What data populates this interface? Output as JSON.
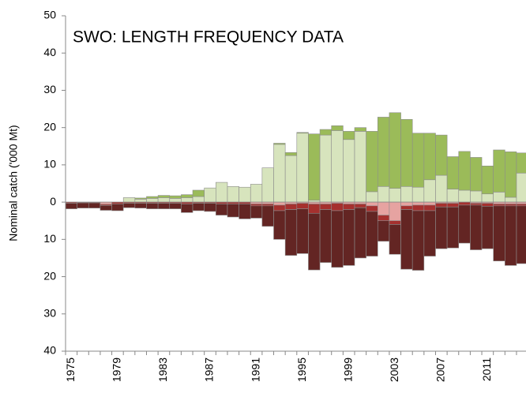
{
  "chart_data": {
    "type": "diverging-stacked-bar",
    "title": "SWO: LENGTH FREQUENCY DATA",
    "y_label": "Nominal catch ('000 Mt)",
    "categories": [
      "1975",
      null,
      null,
      null,
      "1979",
      null,
      null,
      null,
      "1983",
      null,
      null,
      null,
      "1987",
      null,
      null,
      null,
      "1991",
      null,
      null,
      null,
      "1995",
      null,
      null,
      null,
      "1999",
      null,
      null,
      null,
      "2003",
      null,
      null,
      null,
      "2007",
      null,
      null,
      null,
      "2011",
      null,
      null,
      null
    ],
    "series": [
      {
        "color": "#d7e4bd",
        "values": [
          0,
          0,
          0,
          0,
          0,
          1.2,
          0.8,
          1.0,
          1.2,
          1.0,
          1.2,
          1.5,
          3.8,
          5.3,
          4.2,
          4.0,
          4.8,
          9.2,
          15.5,
          12.5,
          18.5,
          0.5,
          18,
          19.2,
          16.8,
          19,
          2.8,
          4.2,
          3.7,
          4.2,
          4.0,
          6.0,
          7.2,
          3.5,
          3.2,
          3.0,
          2.2,
          2.7,
          1.3,
          7.8
        ]
      },
      {
        "color": "#9bbb59",
        "values": [
          0,
          0,
          0,
          0,
          0,
          0,
          0.3,
          0.5,
          0.6,
          0.7,
          0.8,
          1.7,
          0,
          0,
          0,
          0,
          0,
          0,
          0.3,
          0.8,
          0.2,
          17.8,
          1.5,
          1.3,
          2.2,
          1.0,
          16.2,
          18.6,
          20.3,
          18.0,
          14.5,
          12.5,
          10.8,
          8.7,
          10.4,
          9.0,
          7.5,
          11.3,
          12.2,
          5.4
        ]
      },
      {
        "color": "#e6a3a1",
        "values": [
          0,
          0,
          0,
          -0.6,
          0,
          0,
          0,
          0,
          0,
          0,
          0,
          0,
          0,
          0,
          0,
          0,
          -0.5,
          -0.5,
          -0.8,
          -0.5,
          -0.3,
          -0.5,
          -0.5,
          -0.3,
          -0.5,
          -0.5,
          -1.0,
          -3.5,
          -5.0,
          -1.0,
          -0.8,
          -0.8,
          -0.3,
          -0.3,
          0,
          -0.3,
          -0.3,
          -0.5,
          -0.5,
          -0.5
        ]
      },
      {
        "color": "#a5302e",
        "values": [
          -0.3,
          -0.2,
          -0.2,
          -0.3,
          -0.5,
          -0.3,
          -0.3,
          -0.3,
          -0.3,
          -0.3,
          -0.5,
          -0.3,
          -0.3,
          -0.5,
          -0.5,
          -0.5,
          -0.5,
          -0.5,
          -1.5,
          -1.5,
          -1.5,
          -2.5,
          -1.5,
          -2.0,
          -1.5,
          -1.0,
          -1.5,
          -1.5,
          -1.0,
          -1.0,
          -1.5,
          -1.5,
          -1.0,
          -1.0,
          -0.8,
          -0.5,
          -0.8,
          -0.5,
          -0.5,
          -0.5
        ]
      },
      {
        "color": "#632523",
        "values": [
          -1.5,
          -1.4,
          -1.4,
          -1.3,
          -1.8,
          -1.2,
          -1.3,
          -1.5,
          -1.5,
          -1.5,
          -2.3,
          -2.0,
          -2.2,
          -3.0,
          -3.5,
          -4.0,
          -3.3,
          -5.5,
          -7.7,
          -12.3,
          -12.0,
          -15.2,
          -14.2,
          -15.2,
          -15.0,
          -13.5,
          -12.0,
          -5.5,
          -8.0,
          -16.0,
          -16.0,
          -12.2,
          -11.2,
          -11.0,
          -10.2,
          -12.0,
          -11.4,
          -14.8,
          -16.0,
          -15.5
        ]
      }
    ],
    "ylim": [
      -40,
      50
    ],
    "yticks": [
      {
        "value": -40,
        "label": "40"
      },
      {
        "value": -30,
        "label": "30"
      },
      {
        "value": -20,
        "label": "20"
      },
      {
        "value": -10,
        "label": "10"
      },
      0,
      10,
      20,
      30,
      40,
      50
    ],
    "negative_tick_color": "#ff0000",
    "grid": false
  }
}
